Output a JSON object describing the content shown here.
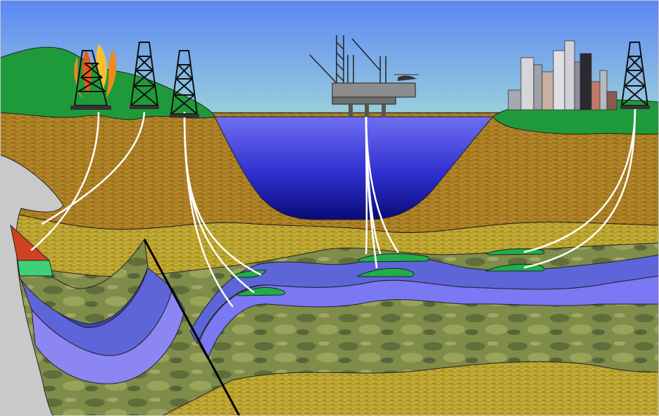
{
  "diagram": {
    "subject": "subsurface-oil-and-gas-wells",
    "labels": [],
    "surface_objects": [
      {
        "name": "burning-derrick",
        "icon": "oil-derrick-fire-icon"
      },
      {
        "name": "land-derrick-2",
        "icon": "oil-derrick-icon"
      },
      {
        "name": "land-derrick-3",
        "icon": "oil-derrick-icon"
      },
      {
        "name": "offshore-platform",
        "icon": "offshore-rig-icon"
      },
      {
        "name": "city-skyline",
        "icon": "city-skyline-icon"
      },
      {
        "name": "land-derrick-4",
        "icon": "oil-derrick-icon"
      }
    ],
    "layers": [
      {
        "name": "sky",
        "color": "#6d9cf2"
      },
      {
        "name": "grass",
        "color": "#1f9a3a"
      },
      {
        "name": "overburden-brown",
        "color": "#a77b22"
      },
      {
        "name": "yellow-sediment",
        "color": "#bda430"
      },
      {
        "name": "mottled-rock",
        "color": "#7f8d48"
      },
      {
        "name": "blue-strata",
        "color": "#6f74ea"
      },
      {
        "name": "salt-dome",
        "color": "#c9c9c9"
      },
      {
        "name": "sea",
        "color": "#2c2fcf"
      }
    ],
    "reservoirs": [
      {
        "name": "gas-cap",
        "color": "#1fae49"
      },
      {
        "name": "oil-pocket",
        "color": "#d0421f"
      },
      {
        "name": "light-gas",
        "color": "#41d07a"
      }
    ],
    "well_color": "#ffffff",
    "fault_color": "#000000"
  }
}
